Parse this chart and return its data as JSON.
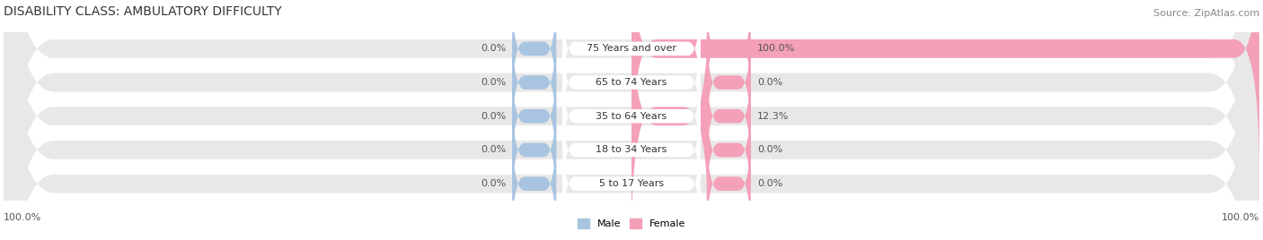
{
  "title": "DISABILITY CLASS: AMBULATORY DIFFICULTY",
  "source": "Source: ZipAtlas.com",
  "categories": [
    "5 to 17 Years",
    "18 to 34 Years",
    "35 to 64 Years",
    "65 to 74 Years",
    "75 Years and over"
  ],
  "male_values": [
    0.0,
    0.0,
    0.0,
    0.0,
    0.0
  ],
  "female_values": [
    0.0,
    0.0,
    12.3,
    0.0,
    100.0
  ],
  "male_color": "#a8c4e0",
  "female_color": "#f4a0b8",
  "bar_bg_color": "#e8e8e8",
  "bar_height": 0.55,
  "max_value": 100.0,
  "left_label": "100.0%",
  "right_label": "100.0%",
  "title_fontsize": 10,
  "source_fontsize": 8,
  "label_fontsize": 8,
  "category_fontsize": 8
}
